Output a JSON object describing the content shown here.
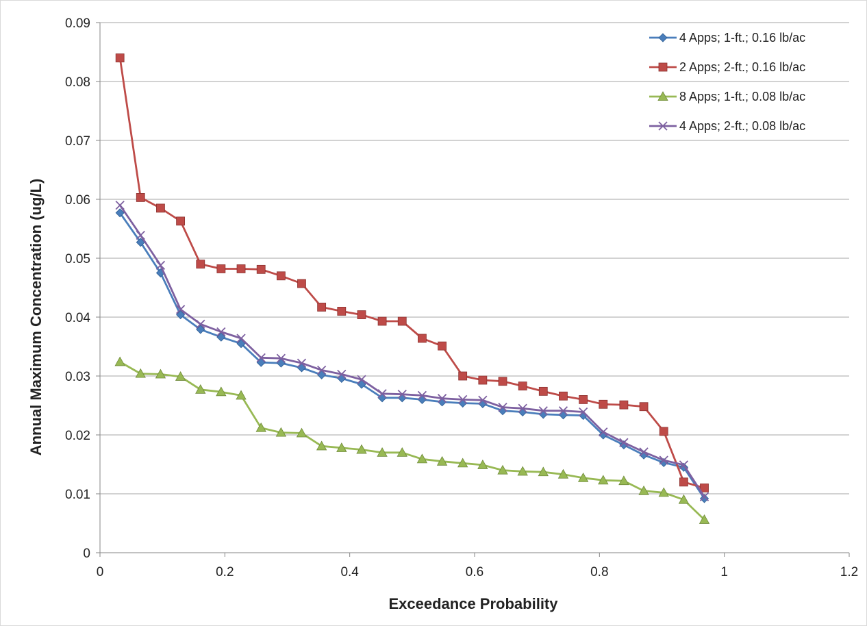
{
  "chart_data": {
    "type": "line",
    "title": "",
    "xlabel": "Exceedance Probability",
    "ylabel": "Annual Maximum Concentration (ug/L)",
    "xlim": [
      0,
      1.2
    ],
    "ylim": [
      0,
      0.09
    ],
    "x_ticks": [
      "0",
      "0.2",
      "0.4",
      "0.6",
      "0.8",
      "1",
      "1.2"
    ],
    "y_ticks": [
      "0",
      "0.01",
      "0.02",
      "0.03",
      "0.04",
      "0.05",
      "0.06",
      "0.07",
      "0.08",
      "0.09"
    ],
    "grid": "horizontal",
    "legend_position": "top-right",
    "x": [
      0.032,
      0.065,
      0.097,
      0.129,
      0.161,
      0.194,
      0.226,
      0.258,
      0.29,
      0.323,
      0.355,
      0.387,
      0.419,
      0.452,
      0.484,
      0.516,
      0.548,
      0.581,
      0.613,
      0.645,
      0.677,
      0.71,
      0.742,
      0.774,
      0.806,
      0.839,
      0.871,
      0.903,
      0.935,
      0.968
    ],
    "series": [
      {
        "name": "4 Apps; 1-ft.; 0.16 lb/ac",
        "color": "#4a7ebb",
        "marker": "diamond",
        "values": [
          0.0577,
          0.0527,
          0.0475,
          0.0404,
          0.0379,
          0.0366,
          0.0355,
          0.0323,
          0.0322,
          0.0314,
          0.0302,
          0.0296,
          0.0286,
          0.0263,
          0.0263,
          0.026,
          0.0256,
          0.0254,
          0.0253,
          0.0241,
          0.0239,
          0.0235,
          0.0234,
          0.0233,
          0.02,
          0.0183,
          0.0166,
          0.0153,
          0.0145,
          0.0092
        ]
      },
      {
        "name": "2 Apps; 2-ft.; 0.16 lb/ac",
        "color": "#be4b48",
        "marker": "square",
        "values": [
          0.084,
          0.0603,
          0.0585,
          0.0563,
          0.049,
          0.0482,
          0.0482,
          0.0481,
          0.047,
          0.0457,
          0.0417,
          0.041,
          0.0404,
          0.0393,
          0.0393,
          0.0364,
          0.0351,
          0.03,
          0.0293,
          0.0291,
          0.0283,
          0.0274,
          0.0266,
          0.026,
          0.0252,
          0.0251,
          0.0248,
          0.0206,
          0.012,
          0.011
        ]
      },
      {
        "name": "8 Apps; 1-ft.; 0.08 lb/ac",
        "color": "#98b954",
        "marker": "triangle",
        "values": [
          0.0324,
          0.0304,
          0.0303,
          0.0299,
          0.0277,
          0.0273,
          0.0267,
          0.0212,
          0.0204,
          0.0203,
          0.0181,
          0.0178,
          0.0175,
          0.017,
          0.017,
          0.0159,
          0.0155,
          0.0152,
          0.0149,
          0.014,
          0.0138,
          0.0137,
          0.0133,
          0.0127,
          0.0123,
          0.0122,
          0.0105,
          0.0102,
          0.009,
          0.0056
        ]
      },
      {
        "name": "4 Apps; 2-ft.; 0.08 lb/ac",
        "color": "#7d60a0",
        "marker": "x",
        "values": [
          0.059,
          0.0539,
          0.0488,
          0.0413,
          0.0388,
          0.0375,
          0.0364,
          0.0331,
          0.033,
          0.0322,
          0.031,
          0.0303,
          0.0294,
          0.027,
          0.0269,
          0.0267,
          0.0262,
          0.026,
          0.0259,
          0.0247,
          0.0245,
          0.0241,
          0.0241,
          0.0239,
          0.0205,
          0.0187,
          0.0171,
          0.0157,
          0.0149,
          0.0095
        ]
      }
    ]
  }
}
